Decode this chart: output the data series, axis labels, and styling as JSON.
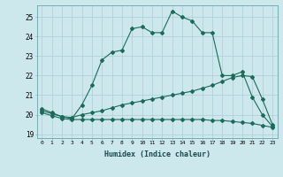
{
  "xlabel": "Humidex (Indice chaleur)",
  "ylabel": "",
  "bg_color": "#cde8ec",
  "grid_color": "#aacdd4",
  "line_color": "#1a6b5a",
  "xlim": [
    -0.5,
    23.5
  ],
  "ylim": [
    18.8,
    25.6
  ],
  "yticks": [
    19,
    20,
    21,
    22,
    23,
    24,
    25
  ],
  "xticks": [
    0,
    1,
    2,
    3,
    4,
    5,
    6,
    7,
    8,
    9,
    10,
    11,
    12,
    13,
    14,
    15,
    16,
    17,
    18,
    19,
    20,
    21,
    22,
    23
  ],
  "series1_x": [
    0,
    1,
    2,
    3,
    4,
    5,
    6,
    7,
    8,
    9,
    10,
    11,
    12,
    13,
    14,
    15,
    16,
    17,
    18,
    19,
    20,
    21,
    22,
    23
  ],
  "series1_y": [
    20.3,
    20.1,
    19.9,
    19.8,
    20.5,
    21.5,
    22.8,
    23.2,
    23.3,
    24.4,
    24.5,
    24.2,
    24.2,
    25.3,
    25.0,
    24.8,
    24.2,
    24.2,
    22.0,
    22.0,
    22.2,
    20.9,
    20.0,
    19.4
  ],
  "series2_x": [
    0,
    1,
    2,
    3,
    4,
    5,
    6,
    7,
    8,
    9,
    10,
    11,
    12,
    13,
    14,
    15,
    16,
    17,
    18,
    19,
    20,
    21,
    22,
    23
  ],
  "series2_y": [
    20.2,
    20.05,
    19.9,
    19.85,
    20.0,
    20.1,
    20.2,
    20.35,
    20.5,
    20.6,
    20.7,
    20.8,
    20.9,
    21.0,
    21.1,
    21.2,
    21.35,
    21.5,
    21.7,
    21.9,
    22.0,
    21.95,
    20.8,
    19.5
  ],
  "series3_x": [
    0,
    1,
    2,
    3,
    4,
    5,
    6,
    7,
    8,
    9,
    10,
    11,
    12,
    13,
    14,
    15,
    16,
    17,
    18,
    19,
    20,
    21,
    22,
    23
  ],
  "series3_y": [
    20.1,
    19.95,
    19.8,
    19.75,
    19.75,
    19.75,
    19.75,
    19.75,
    19.75,
    19.75,
    19.75,
    19.75,
    19.75,
    19.75,
    19.75,
    19.75,
    19.75,
    19.7,
    19.7,
    19.65,
    19.6,
    19.55,
    19.45,
    19.35
  ]
}
